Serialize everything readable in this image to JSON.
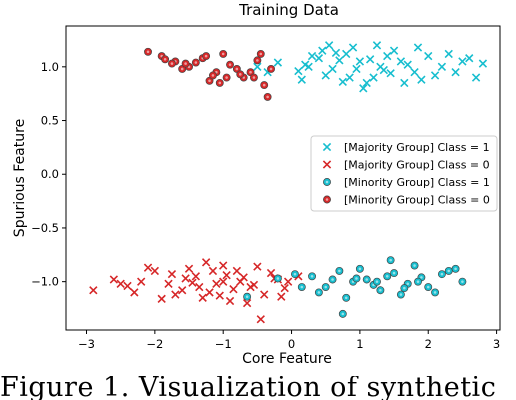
{
  "caption": "Figure 1.    Visualization of synthetic",
  "chart_data": {
    "type": "scatter",
    "title": "Training Data",
    "xlabel": "Core Feature",
    "ylabel": "Spurious Feature",
    "xlim": [
      -3.3,
      3.05
    ],
    "ylim": [
      -1.45,
      1.38
    ],
    "xticks": [
      -3,
      -2,
      -1,
      0,
      1,
      2,
      3
    ],
    "xtick_labels": [
      "−3",
      "−2",
      "−1",
      "0",
      "1",
      "2",
      "3"
    ],
    "yticks": [
      -1.0,
      -0.5,
      0.0,
      0.5,
      1.0
    ],
    "ytick_labels": [
      "−1.0",
      "−0.5",
      "0.0",
      "0.5",
      "1.0"
    ],
    "grid": false,
    "legend_position": "center-right",
    "series": [
      {
        "name": "[Majority Group] Class = 1",
        "marker": "x",
        "color": "#17becf",
        "points": [
          [
            1.0,
            1.05
          ],
          [
            0.6,
            0.98
          ],
          [
            1.4,
            1.1
          ],
          [
            0.2,
            1.02
          ],
          [
            1.8,
            0.95
          ],
          [
            0.8,
            1.12
          ],
          [
            1.2,
            0.9
          ],
          [
            0.4,
            1.08
          ],
          [
            2.2,
            1.0
          ],
          [
            0.1,
            0.96
          ],
          [
            1.6,
            1.05
          ],
          [
            0.9,
            1.18
          ],
          [
            1.1,
            0.85
          ],
          [
            0.5,
            0.92
          ],
          [
            2.0,
            1.1
          ],
          [
            1.3,
            1.0
          ],
          [
            0.7,
            1.06
          ],
          [
            1.9,
            0.88
          ],
          [
            0.3,
            1.1
          ],
          [
            2.4,
            0.95
          ],
          [
            1.5,
            1.15
          ],
          [
            0.95,
            0.98
          ],
          [
            1.7,
            1.02
          ],
          [
            0.85,
            0.9
          ],
          [
            2.6,
            1.08
          ],
          [
            -0.2,
            1.04
          ],
          [
            -0.5,
            1.0
          ],
          [
            2.8,
            1.03
          ],
          [
            2.1,
            0.92
          ],
          [
            0.45,
            1.15
          ],
          [
            1.25,
            1.2
          ],
          [
            1.05,
            0.8
          ],
          [
            0.75,
            0.86
          ],
          [
            1.45,
            0.94
          ],
          [
            0.15,
            0.88
          ],
          [
            2.3,
            1.12
          ],
          [
            -0.35,
            0.95
          ],
          [
            0.55,
            1.2
          ],
          [
            1.85,
            1.18
          ],
          [
            1.65,
            0.85
          ],
          [
            2.5,
            1.05
          ],
          [
            1.15,
            1.07
          ],
          [
            0.25,
            1.0
          ],
          [
            0.65,
            1.13
          ],
          [
            1.35,
            0.97
          ],
          [
            2.7,
            0.9
          ]
        ]
      },
      {
        "name": "[Majority Group] Class = 0",
        "marker": "x",
        "color": "#d62728",
        "points": [
          [
            -1.0,
            -1.0
          ],
          [
            -1.4,
            -0.95
          ],
          [
            -0.6,
            -1.05
          ],
          [
            -1.8,
            -1.02
          ],
          [
            -0.2,
            -0.98
          ],
          [
            -1.2,
            -1.1
          ],
          [
            -0.8,
            -0.9
          ],
          [
            -1.6,
            -1.08
          ],
          [
            -2.2,
            -1.0
          ],
          [
            -0.4,
            -1.12
          ],
          [
            -1.0,
            -0.85
          ],
          [
            -1.3,
            -1.15
          ],
          [
            -0.7,
            -0.96
          ],
          [
            -2.0,
            -0.9
          ],
          [
            -0.1,
            -1.06
          ],
          [
            -1.5,
            -0.88
          ],
          [
            -0.9,
            -1.18
          ],
          [
            -2.4,
            -1.04
          ],
          [
            -0.3,
            -0.92
          ],
          [
            -1.1,
            -1.02
          ],
          [
            -1.7,
            -1.12
          ],
          [
            -0.5,
            -0.86
          ],
          [
            -2.6,
            -0.98
          ],
          [
            -2.9,
            -1.08
          ],
          [
            -0.05,
            -1.0
          ],
          [
            -1.9,
            -1.16
          ],
          [
            -0.65,
            -1.2
          ],
          [
            -1.25,
            -0.82
          ],
          [
            -0.45,
            -1.35
          ],
          [
            -2.1,
            -0.87
          ],
          [
            -0.85,
            -1.07
          ],
          [
            -1.45,
            -1.01
          ],
          [
            -0.25,
            -0.97
          ],
          [
            -1.05,
            -1.13
          ],
          [
            -1.75,
            -0.93
          ],
          [
            -0.55,
            -1.03
          ],
          [
            -2.3,
            -1.1
          ],
          [
            -1.15,
            -0.9
          ],
          [
            -0.75,
            -1.0
          ],
          [
            -1.35,
            -1.05
          ],
          [
            0.1,
            -0.95
          ],
          [
            -1.55,
            -0.97
          ],
          [
            -0.95,
            -0.94
          ],
          [
            -2.5,
            -1.02
          ],
          [
            -0.15,
            -1.14
          ]
        ]
      },
      {
        "name": "[Minority Group] Class = 1",
        "marker": "o",
        "color": "#17becf",
        "points": [
          [
            0.3,
            -0.95
          ],
          [
            0.5,
            -1.05
          ],
          [
            0.7,
            -0.9
          ],
          [
            0.9,
            -1.0
          ],
          [
            1.1,
            -0.98
          ],
          [
            1.3,
            -1.08
          ],
          [
            1.5,
            -0.92
          ],
          [
            1.7,
            -1.02
          ],
          [
            1.9,
            -0.96
          ],
          [
            2.1,
            -1.1
          ],
          [
            2.3,
            -0.9
          ],
          [
            2.5,
            -1.0
          ],
          [
            0.8,
            -1.15
          ],
          [
            1.0,
            -0.88
          ],
          [
            1.2,
            -1.03
          ],
          [
            1.4,
            -0.95
          ],
          [
            1.6,
            -1.12
          ],
          [
            1.8,
            -0.85
          ],
          [
            0.4,
            -1.1
          ],
          [
            0.6,
            -0.98
          ],
          [
            2.0,
            -1.05
          ],
          [
            2.2,
            -0.93
          ],
          [
            1.45,
            -0.8
          ],
          [
            0.75,
            -1.3
          ],
          [
            0.15,
            -1.05
          ],
          [
            2.4,
            -0.88
          ],
          [
            1.25,
            -1.0
          ],
          [
            0.95,
            -0.97
          ],
          [
            1.65,
            -1.06
          ],
          [
            1.85,
            -1.0
          ],
          [
            -0.65,
            -1.14
          ],
          [
            -0.2,
            -0.97
          ],
          [
            0.05,
            -0.93
          ]
        ]
      },
      {
        "name": "[Minority Group] Class = 0",
        "marker": "o",
        "color": "#d62728",
        "points": [
          [
            -2.1,
            1.14
          ],
          [
            -1.9,
            1.1
          ],
          [
            -1.7,
            1.05
          ],
          [
            -1.5,
            1.0
          ],
          [
            -1.3,
            1.08
          ],
          [
            -1.1,
            0.95
          ],
          [
            -0.9,
            1.02
          ],
          [
            -0.7,
            0.9
          ],
          [
            -0.5,
            1.06
          ],
          [
            -0.4,
            0.83
          ],
          [
            -1.6,
            0.98
          ],
          [
            -1.2,
            0.87
          ],
          [
            -1.0,
            1.12
          ],
          [
            -0.8,
            0.98
          ],
          [
            -1.4,
            1.04
          ],
          [
            -0.6,
            0.95
          ],
          [
            -0.35,
            0.72
          ],
          [
            -0.95,
            0.9
          ],
          [
            -1.75,
            1.03
          ],
          [
            -1.25,
            1.1
          ],
          [
            -0.45,
            1.12
          ],
          [
            -0.75,
            0.93
          ],
          [
            -1.55,
            1.03
          ],
          [
            -1.05,
            0.85
          ],
          [
            -0.55,
            0.9
          ],
          [
            -1.85,
            1.07
          ],
          [
            -1.15,
            0.92
          ],
          [
            -0.3,
            0.98
          ]
        ]
      }
    ]
  }
}
